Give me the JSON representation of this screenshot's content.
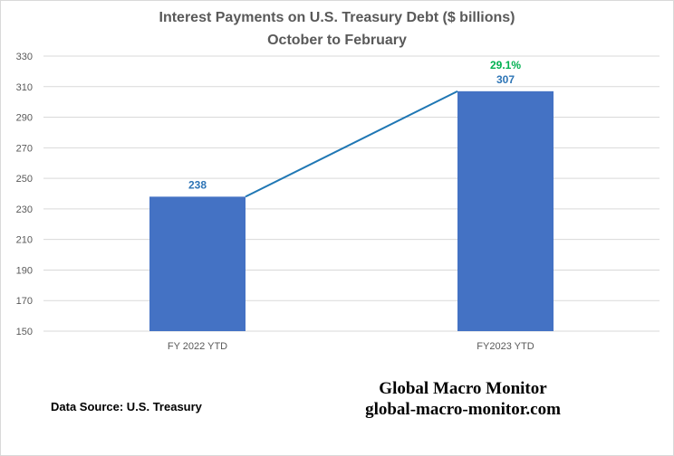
{
  "chart_data": {
    "type": "bar",
    "title": "Interest Payments on U.S. Treasury Debt ($ billions)",
    "subtitle": "October to February",
    "categories": [
      "FY 2022 YTD",
      "FY2023 YTD"
    ],
    "values": [
      238,
      307
    ],
    "data_labels": [
      "238",
      "307"
    ],
    "change_label": "29.1%",
    "ylim": [
      150,
      330
    ],
    "yticks": [
      150,
      170,
      190,
      210,
      230,
      250,
      270,
      290,
      310,
      330
    ],
    "grid": true,
    "legend": "none",
    "connector_line": true
  },
  "colors": {
    "bar": "#4472c4",
    "connector": "#1f77b4",
    "value_label": "#2e75b6",
    "change_label": "#00b050",
    "grid": "#d9d9d9"
  },
  "footer": {
    "source": "Data Source:  U.S. Treasury",
    "brand_name": "Global Macro Monitor",
    "brand_url": "global-macro-monitor.com"
  }
}
